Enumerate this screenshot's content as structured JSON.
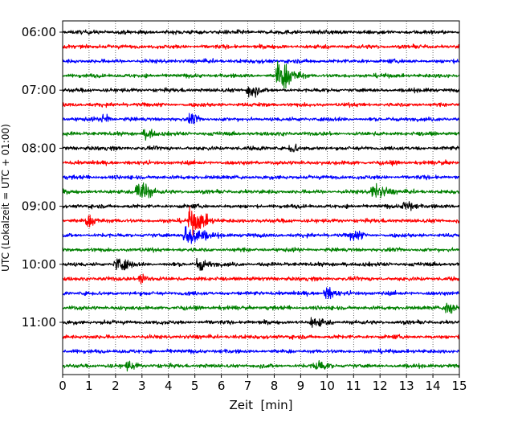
{
  "chart_data": {
    "type": "line",
    "chart_kind": "helicorder seismogram (stacked traces, 15-minute rows)",
    "xlabel": "Zeit  [min]",
    "ylabel": "UTC (Lokalzeit = UTC + 01:00)",
    "xlim": [
      0,
      15
    ],
    "x_ticks": [
      0,
      1,
      2,
      3,
      4,
      5,
      6,
      7,
      8,
      9,
      10,
      11,
      12,
      13,
      14,
      15
    ],
    "x_tick_labels": [
      "0",
      "1",
      "2",
      "3",
      "4",
      "5",
      "6",
      "7",
      "8",
      "9",
      "10",
      "11",
      "12",
      "13",
      "14",
      "15"
    ],
    "grid": "vertical dotted lines at each minute",
    "time_labels": [
      "06:00",
      "07:00",
      "08:00",
      "09:00",
      "10:00",
      "11:00"
    ],
    "rows_per_hour": 4,
    "row_start_times": [
      "06:00",
      "06:15",
      "06:30",
      "06:45",
      "07:00",
      "07:15",
      "07:30",
      "07:45",
      "08:00",
      "08:15",
      "08:30",
      "08:45",
      "09:00",
      "09:15",
      "09:30",
      "09:45",
      "10:00",
      "10:15",
      "10:30",
      "10:45",
      "11:00",
      "11:15",
      "11:30",
      "11:45"
    ],
    "row_colors": [
      "#000000",
      "#ff0000",
      "#0000ff",
      "#008000"
    ],
    "noise_amplitude": 0.12,
    "events": [
      {
        "row": 3,
        "minute": 8.2,
        "amplitude": 1.0,
        "duration": 0.9
      },
      {
        "row": 4,
        "minute": 7.1,
        "amplitude": 0.55,
        "duration": 0.4
      },
      {
        "row": 6,
        "minute": 1.6,
        "amplitude": 0.4,
        "duration": 0.3
      },
      {
        "row": 6,
        "minute": 4.9,
        "amplitude": 0.35,
        "duration": 0.3
      },
      {
        "row": 7,
        "minute": 3.2,
        "amplitude": 0.3,
        "duration": 0.4
      },
      {
        "row": 8,
        "minute": 8.7,
        "amplitude": 0.35,
        "duration": 0.3
      },
      {
        "row": 11,
        "minute": 2.9,
        "amplitude": 0.85,
        "duration": 0.6
      },
      {
        "row": 11,
        "minute": 11.8,
        "amplitude": 0.45,
        "duration": 0.8
      },
      {
        "row": 12,
        "minute": 13.0,
        "amplitude": 0.35,
        "duration": 0.5
      },
      {
        "row": 13,
        "minute": 4.9,
        "amplitude": 0.85,
        "duration": 0.8
      },
      {
        "row": 13,
        "minute": 1.0,
        "amplitude": 0.35,
        "duration": 0.6
      },
      {
        "row": 14,
        "minute": 4.7,
        "amplitude": 0.7,
        "duration": 1.0
      },
      {
        "row": 14,
        "minute": 11.0,
        "amplitude": 0.35,
        "duration": 0.5
      },
      {
        "row": 16,
        "minute": 2.1,
        "amplitude": 0.45,
        "duration": 0.6
      },
      {
        "row": 16,
        "minute": 5.2,
        "amplitude": 0.45,
        "duration": 0.4
      },
      {
        "row": 17,
        "minute": 3.0,
        "amplitude": 0.45,
        "duration": 0.4
      },
      {
        "row": 18,
        "minute": 10.0,
        "amplitude": 0.35,
        "duration": 0.5
      },
      {
        "row": 19,
        "minute": 14.6,
        "amplitude": 0.45,
        "duration": 0.4
      },
      {
        "row": 20,
        "minute": 9.5,
        "amplitude": 0.35,
        "duration": 0.6
      },
      {
        "row": 23,
        "minute": 9.6,
        "amplitude": 0.35,
        "duration": 0.6
      },
      {
        "row": 23,
        "minute": 2.5,
        "amplitude": 0.3,
        "duration": 0.5
      }
    ]
  }
}
